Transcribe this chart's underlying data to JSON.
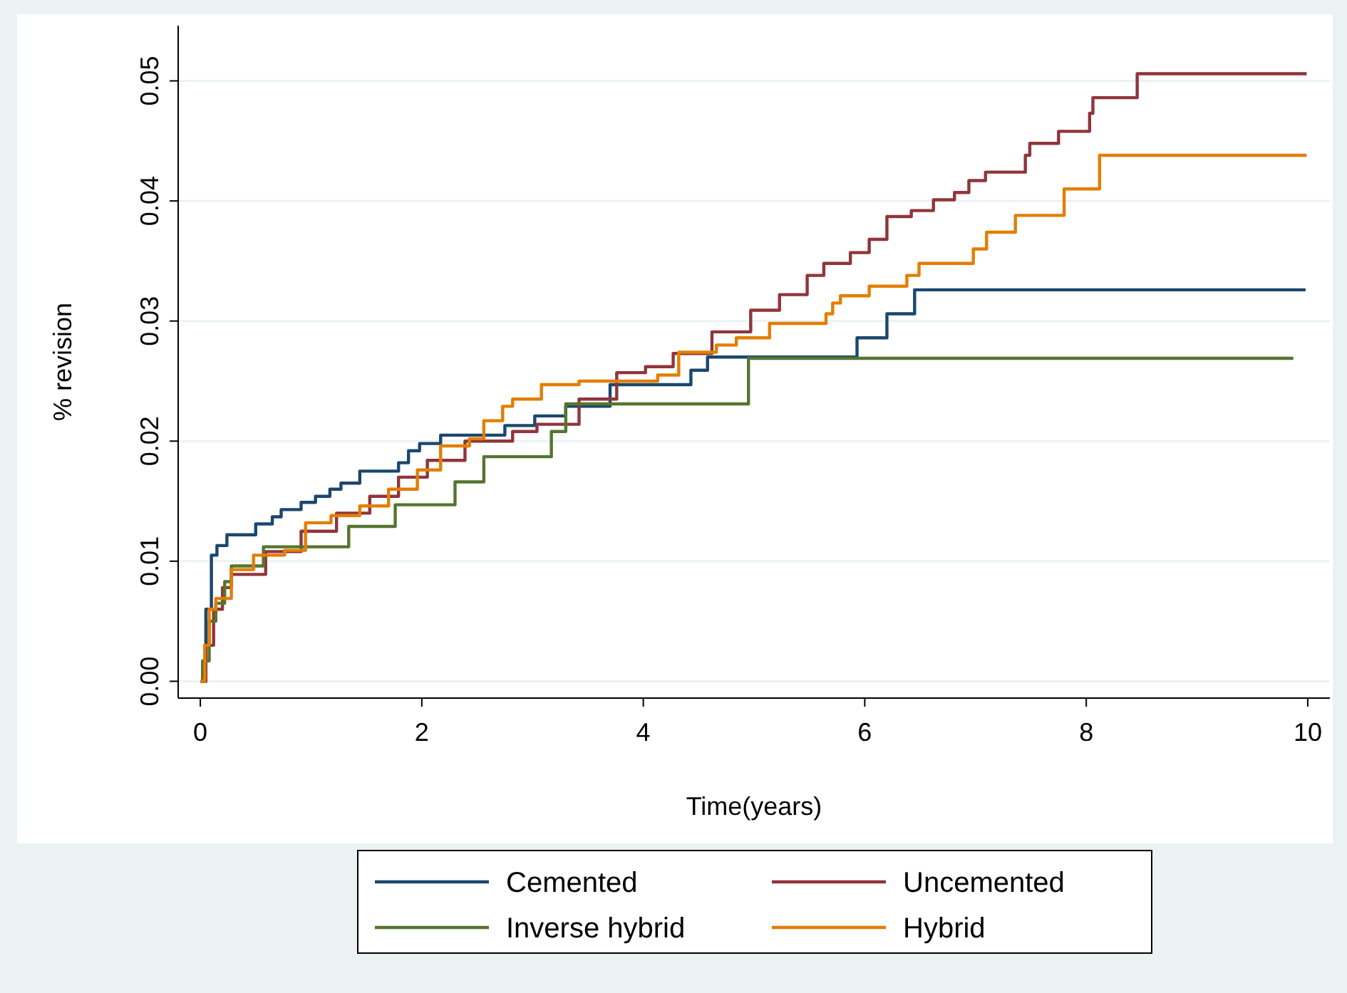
{
  "chart_data": {
    "type": "step",
    "xlabel": "Time(years)",
    "ylabel": "% revision",
    "xlim": [
      -0.2,
      10.2
    ],
    "ylim": [
      -0.0014,
      0.0546
    ],
    "xticks": [
      0,
      2,
      4,
      6,
      8,
      10
    ],
    "yticks": [
      {
        "value": 0,
        "label": "0.00"
      },
      {
        "value": 0.01,
        "label": "0.01"
      },
      {
        "value": 0.02,
        "label": "0.02"
      },
      {
        "value": 0.03,
        "label": "0.03"
      },
      {
        "value": 0.04,
        "label": "0.04"
      },
      {
        "value": 0.05,
        "label": "0.05"
      }
    ],
    "grid": "y",
    "legend": "bottom",
    "line_style": "solid",
    "marker": "none",
    "series": [
      {
        "name": "Cemented",
        "color": "#1a476f",
        "x": [
          0,
          0.05,
          0.1,
          0.15,
          0.24,
          0.5,
          0.65,
          0.73,
          0.91,
          1.04,
          1.17,
          1.27,
          1.44,
          1.79,
          1.88,
          1.98,
          2.17,
          2.75,
          3.02,
          3.3,
          3.7,
          4.43,
          4.58,
          5.93,
          6.2,
          6.45,
          9.98
        ],
        "values": [
          0,
          0.006,
          0.0105,
          0.0113,
          0.0122,
          0.0131,
          0.0137,
          0.0143,
          0.0149,
          0.0154,
          0.016,
          0.0165,
          0.0175,
          0.0182,
          0.0192,
          0.0198,
          0.0205,
          0.0213,
          0.0221,
          0.0229,
          0.0247,
          0.0259,
          0.027,
          0.0286,
          0.0306,
          0.0326,
          0.0326
        ]
      },
      {
        "name": "Uncemented",
        "color": "#90353b",
        "x": [
          0,
          0.05,
          0.12,
          0.2,
          0.28,
          0.59,
          0.91,
          1.23,
          1.53,
          1.79,
          2.05,
          2.39,
          2.82,
          3.04,
          3.42,
          3.76,
          4.02,
          4.27,
          4.62,
          4.97,
          5.23,
          5.48,
          5.63,
          5.87,
          6.04,
          6.2,
          6.42,
          6.62,
          6.81,
          6.94,
          7.09,
          7.45,
          7.49,
          7.75,
          8.03,
          8.06,
          8.46,
          9.99
        ],
        "values": [
          0,
          0.003,
          0.006,
          0.0078,
          0.0089,
          0.0108,
          0.0125,
          0.014,
          0.0154,
          0.017,
          0.0184,
          0.02,
          0.0208,
          0.0214,
          0.0235,
          0.0257,
          0.0262,
          0.0273,
          0.0291,
          0.0309,
          0.0322,
          0.0338,
          0.0348,
          0.0357,
          0.0368,
          0.0387,
          0.0392,
          0.0401,
          0.0407,
          0.0417,
          0.0424,
          0.0438,
          0.0448,
          0.0458,
          0.0473,
          0.0486,
          0.0506,
          0.0506
        ]
      },
      {
        "name": "Inverse hybrid",
        "color": "#55752f",
        "x": [
          0,
          0.02,
          0.08,
          0.14,
          0.22,
          0.28,
          0.57,
          1.34,
          1.76,
          2.3,
          2.56,
          3.17,
          3.3,
          4.95,
          9.87
        ],
        "values": [
          0,
          0.0017,
          0.005,
          0.0065,
          0.0083,
          0.0096,
          0.0112,
          0.0129,
          0.0147,
          0.0166,
          0.0187,
          0.0208,
          0.0231,
          0.0269,
          0.0269
        ]
      },
      {
        "name": "Hybrid",
        "color": "#e37e00",
        "x": [
          0,
          0.04,
          0.08,
          0.14,
          0.28,
          0.48,
          0.76,
          0.95,
          1.18,
          1.44,
          1.7,
          1.96,
          2.17,
          2.43,
          2.56,
          2.73,
          2.82,
          3.08,
          3.42,
          4.13,
          4.32,
          4.66,
          4.84,
          5.14,
          5.65,
          5.71,
          5.78,
          6.04,
          6.38,
          6.49,
          6.98,
          7.1,
          7.36,
          7.8,
          8.12,
          9.99
        ],
        "values": [
          0,
          0.003,
          0.006,
          0.0069,
          0.0093,
          0.0105,
          0.0109,
          0.0132,
          0.0138,
          0.0146,
          0.016,
          0.0176,
          0.0196,
          0.0202,
          0.0217,
          0.0229,
          0.0235,
          0.0247,
          0.025,
          0.0255,
          0.0274,
          0.028,
          0.0286,
          0.0298,
          0.0306,
          0.0315,
          0.0321,
          0.0329,
          0.0338,
          0.0348,
          0.036,
          0.0374,
          0.0388,
          0.041,
          0.0438,
          0.0438
        ]
      }
    ]
  }
}
